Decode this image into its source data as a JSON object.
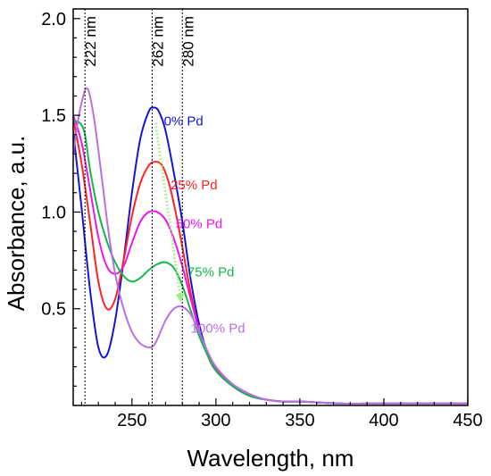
{
  "chart_data": {
    "type": "line",
    "title": "",
    "xlabel": "Wavelength, nm",
    "ylabel": "Absorbance, a.u.",
    "xlim": [
      215,
      450
    ],
    "ylim": [
      0,
      2.05
    ],
    "x_ticks": [
      250,
      300,
      350,
      400,
      450
    ],
    "y_ticks": [
      0.5,
      1.0,
      1.5,
      2.0
    ],
    "x_tick_labels": [
      "250",
      "300",
      "350",
      "400",
      "450"
    ],
    "y_tick_labels": [
      "0.5",
      "1.0",
      "1.5",
      "2.0"
    ],
    "grid": false,
    "legend": "labels placed next to curves",
    "reference_lines": [
      {
        "x": 222,
        "label": "222 nm"
      },
      {
        "x": 262,
        "label": "262 nm"
      },
      {
        "x": 280,
        "label": "280 nm"
      }
    ],
    "trend_arrow": {
      "from": [
        264,
        1.46
      ],
      "to": [
        279,
        0.55
      ],
      "color": "#9bef7a"
    },
    "series": [
      {
        "name": "0% Pd",
        "color": "#1515d6",
        "label_at": [
          269,
          1.47
        ],
        "x": [
          215,
          220,
          225,
          230,
          235,
          240,
          245,
          250,
          255,
          260,
          263,
          266,
          270,
          275,
          280,
          285,
          290,
          295,
          300,
          310,
          320,
          330,
          340,
          350,
          375,
          400,
          425,
          450
        ],
        "y": [
          1.42,
          1.02,
          0.6,
          0.3,
          0.26,
          0.44,
          0.75,
          1.1,
          1.38,
          1.52,
          1.54,
          1.52,
          1.42,
          1.2,
          0.95,
          0.65,
          0.42,
          0.27,
          0.18,
          0.1,
          0.05,
          0.03,
          0.02,
          0.02,
          0.01,
          0.01,
          0.01,
          0.01
        ]
      },
      {
        "name": "25% Pd",
        "color": "#ff2222",
        "label_at": [
          273,
          1.14
        ],
        "x": [
          215,
          220,
          225,
          230,
          235,
          240,
          245,
          250,
          255,
          260,
          264,
          268,
          272,
          276,
          280,
          285,
          290,
          295,
          300,
          310,
          320,
          330,
          340,
          350,
          375,
          400,
          425,
          450
        ],
        "y": [
          1.48,
          1.25,
          0.95,
          0.64,
          0.5,
          0.55,
          0.75,
          0.98,
          1.15,
          1.24,
          1.26,
          1.24,
          1.15,
          1.0,
          0.82,
          0.58,
          0.39,
          0.26,
          0.18,
          0.1,
          0.05,
          0.03,
          0.02,
          0.02,
          0.01,
          0.01,
          0.01,
          0.01
        ]
      },
      {
        "name": "50% Pd",
        "color": "#ee16ee",
        "label_at": [
          276,
          0.94
        ],
        "x": [
          215,
          220,
          225,
          230,
          235,
          240,
          245,
          250,
          255,
          260,
          265,
          270,
          275,
          280,
          285,
          290,
          295,
          300,
          310,
          320,
          330,
          340,
          350,
          375,
          400,
          425,
          450
        ],
        "y": [
          1.5,
          1.36,
          1.12,
          0.87,
          0.72,
          0.68,
          0.72,
          0.84,
          0.95,
          1.0,
          1.0,
          0.96,
          0.86,
          0.72,
          0.55,
          0.39,
          0.27,
          0.19,
          0.1,
          0.05,
          0.03,
          0.02,
          0.02,
          0.01,
          0.01,
          0.01,
          0.01
        ]
      },
      {
        "name": "75% Pd",
        "color": "#12b84a",
        "label_at": [
          283,
          0.69
        ],
        "x": [
          215,
          219,
          222,
          225,
          230,
          235,
          240,
          245,
          250,
          255,
          260,
          265,
          270,
          275,
          280,
          285,
          290,
          295,
          300,
          310,
          320,
          330,
          340,
          350,
          375,
          400,
          425,
          450
        ],
        "y": [
          1.47,
          1.46,
          1.4,
          1.22,
          1.0,
          0.85,
          0.74,
          0.67,
          0.64,
          0.66,
          0.7,
          0.73,
          0.74,
          0.71,
          0.62,
          0.49,
          0.36,
          0.26,
          0.18,
          0.1,
          0.05,
          0.03,
          0.02,
          0.02,
          0.01,
          0.01,
          0.01,
          0.01
        ]
      },
      {
        "name": "100% Pd",
        "color": "#b870e0",
        "label_at": [
          285,
          0.4
        ],
        "x": [
          215,
          218,
          221,
          223,
          225,
          228,
          232,
          236,
          240,
          245,
          250,
          255,
          260,
          263,
          266,
          270,
          275,
          280,
          285,
          290,
          295,
          300,
          310,
          320,
          330,
          340,
          350,
          375,
          400,
          425,
          450
        ],
        "y": [
          1.3,
          1.48,
          1.6,
          1.64,
          1.6,
          1.45,
          1.18,
          0.9,
          0.68,
          0.5,
          0.38,
          0.32,
          0.3,
          0.31,
          0.36,
          0.44,
          0.5,
          0.51,
          0.47,
          0.38,
          0.28,
          0.2,
          0.11,
          0.06,
          0.03,
          0.02,
          0.02,
          0.01,
          0.01,
          0.01,
          0.01
        ]
      }
    ]
  }
}
